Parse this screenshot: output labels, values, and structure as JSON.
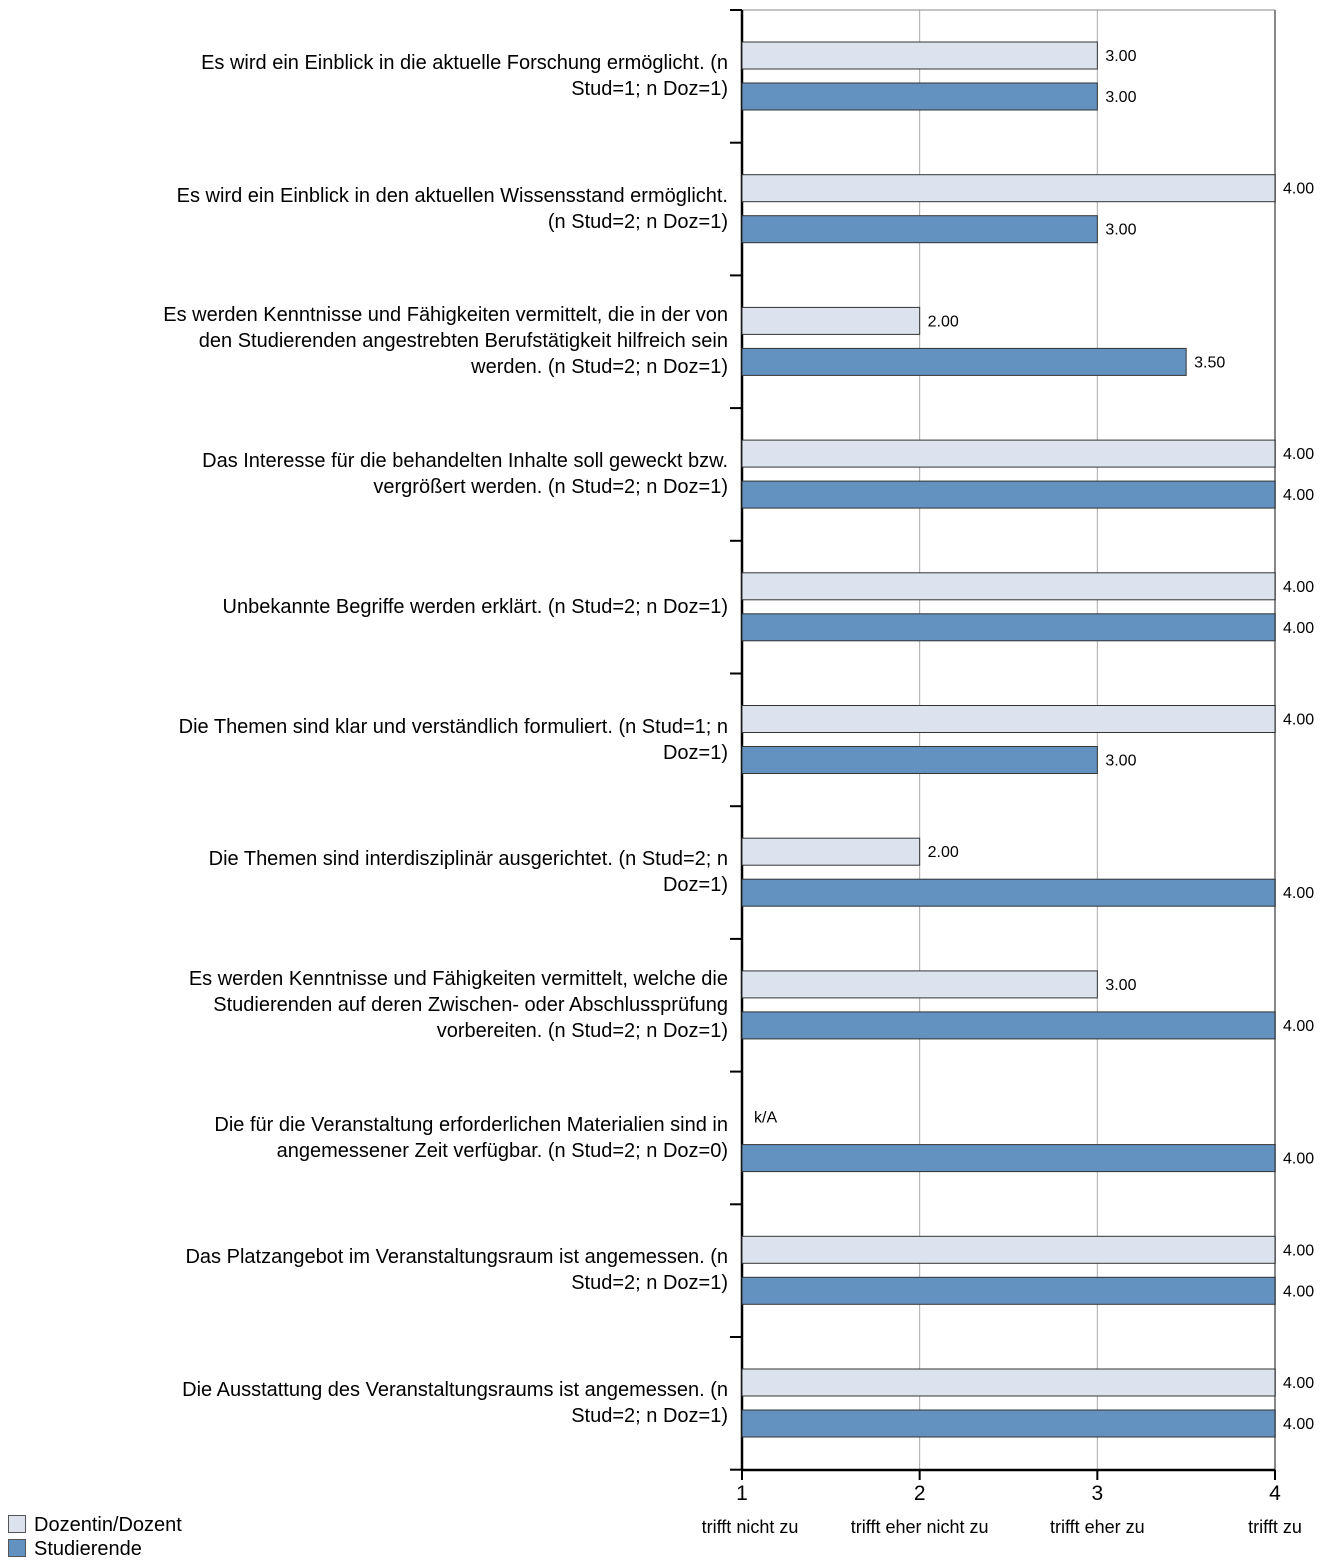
{
  "chart_data": {
    "type": "bar",
    "orientation": "horizontal",
    "xlim": [
      1,
      4
    ],
    "x_ticks": [
      1,
      2,
      3,
      4
    ],
    "x_tick_labels": [
      "trifft nicht zu",
      "trifft eher nicht zu",
      "trifft eher zu",
      "trifft zu"
    ],
    "grid": true,
    "legend_position": "bottom-left",
    "colors": {
      "dozent": "#dce3ee",
      "stud": "#6391c0",
      "edge": "#333333",
      "grid": "#aaaaaa"
    },
    "series": [
      {
        "name": "Dozentin/Dozent",
        "values": [
          3.0,
          4.0,
          2.0,
          4.0,
          4.0,
          4.0,
          2.0,
          3.0,
          null,
          4.0,
          4.0
        ]
      },
      {
        "name": "Studierende",
        "values": [
          3.0,
          3.0,
          3.5,
          4.0,
          4.0,
          3.0,
          4.0,
          4.0,
          4.0,
          4.0,
          4.0
        ]
      }
    ],
    "value_labels": {
      "dozent": [
        "3.00",
        "4.00",
        "2.00",
        "4.00",
        "4.00",
        "4.00",
        "2.00",
        "3.00",
        "k/A",
        "4.00",
        "4.00"
      ],
      "stud": [
        "3.00",
        "3.00",
        "3.50",
        "4.00",
        "4.00",
        "3.00",
        "4.00",
        "4.00",
        "4.00",
        "4.00",
        "4.00"
      ]
    },
    "categories": [
      [
        "Es wird ein Einblick in die aktuelle Forschung ermöglicht.  (n",
        "Stud=1; n  Doz=1)"
      ],
      [
        "Es wird ein Einblick in den aktuellen Wissensstand ermöglicht.",
        "(n Stud=2; n  Doz=1)"
      ],
      [
        "Es werden Kenntnisse und Fähigkeiten vermittelt, die in der von",
        "den Studierenden angestrebten Berufstätigkeit hilfreich sein",
        "werden.  (n Stud=2; n  Doz=1)"
      ],
      [
        "Das Interesse für die behandelten Inhalte soll geweckt bzw.",
        "vergrößert werden.  (n Stud=2; n  Doz=1)"
      ],
      [
        "Unbekannte Begriffe werden erklärt.  (n Stud=2; n Doz=1)"
      ],
      [
        "Die Themen sind klar und verständlich formuliert.  (n Stud=1; n",
        "Doz=1)"
      ],
      [
        "Die Themen sind interdisziplinär ausgerichtet.  (n Stud=2; n",
        "Doz=1)"
      ],
      [
        "Es werden Kenntnisse und Fähigkeiten vermittelt, welche die",
        "Studierenden auf deren Zwischen- oder Abschlussprüfung",
        "vorbereiten.  (n Stud=2; n  Doz=1)"
      ],
      [
        "Die für die Veranstaltung erforderlichen Materialien sind in",
        "angemessener Zeit verfügbar.  (n Stud=2; n  Doz=0)"
      ],
      [
        "Das Platzangebot im Veranstaltungsraum ist angemessen.  (n",
        "Stud=2; n  Doz=1)"
      ],
      [
        "Die Ausstattung des Veranstaltungsraums ist angemessen.  (n",
        "Stud=2; n  Doz=1)"
      ]
    ]
  },
  "legend": {
    "dozent_label": "Dozentin/Dozent",
    "stud_label": "Studierende"
  }
}
